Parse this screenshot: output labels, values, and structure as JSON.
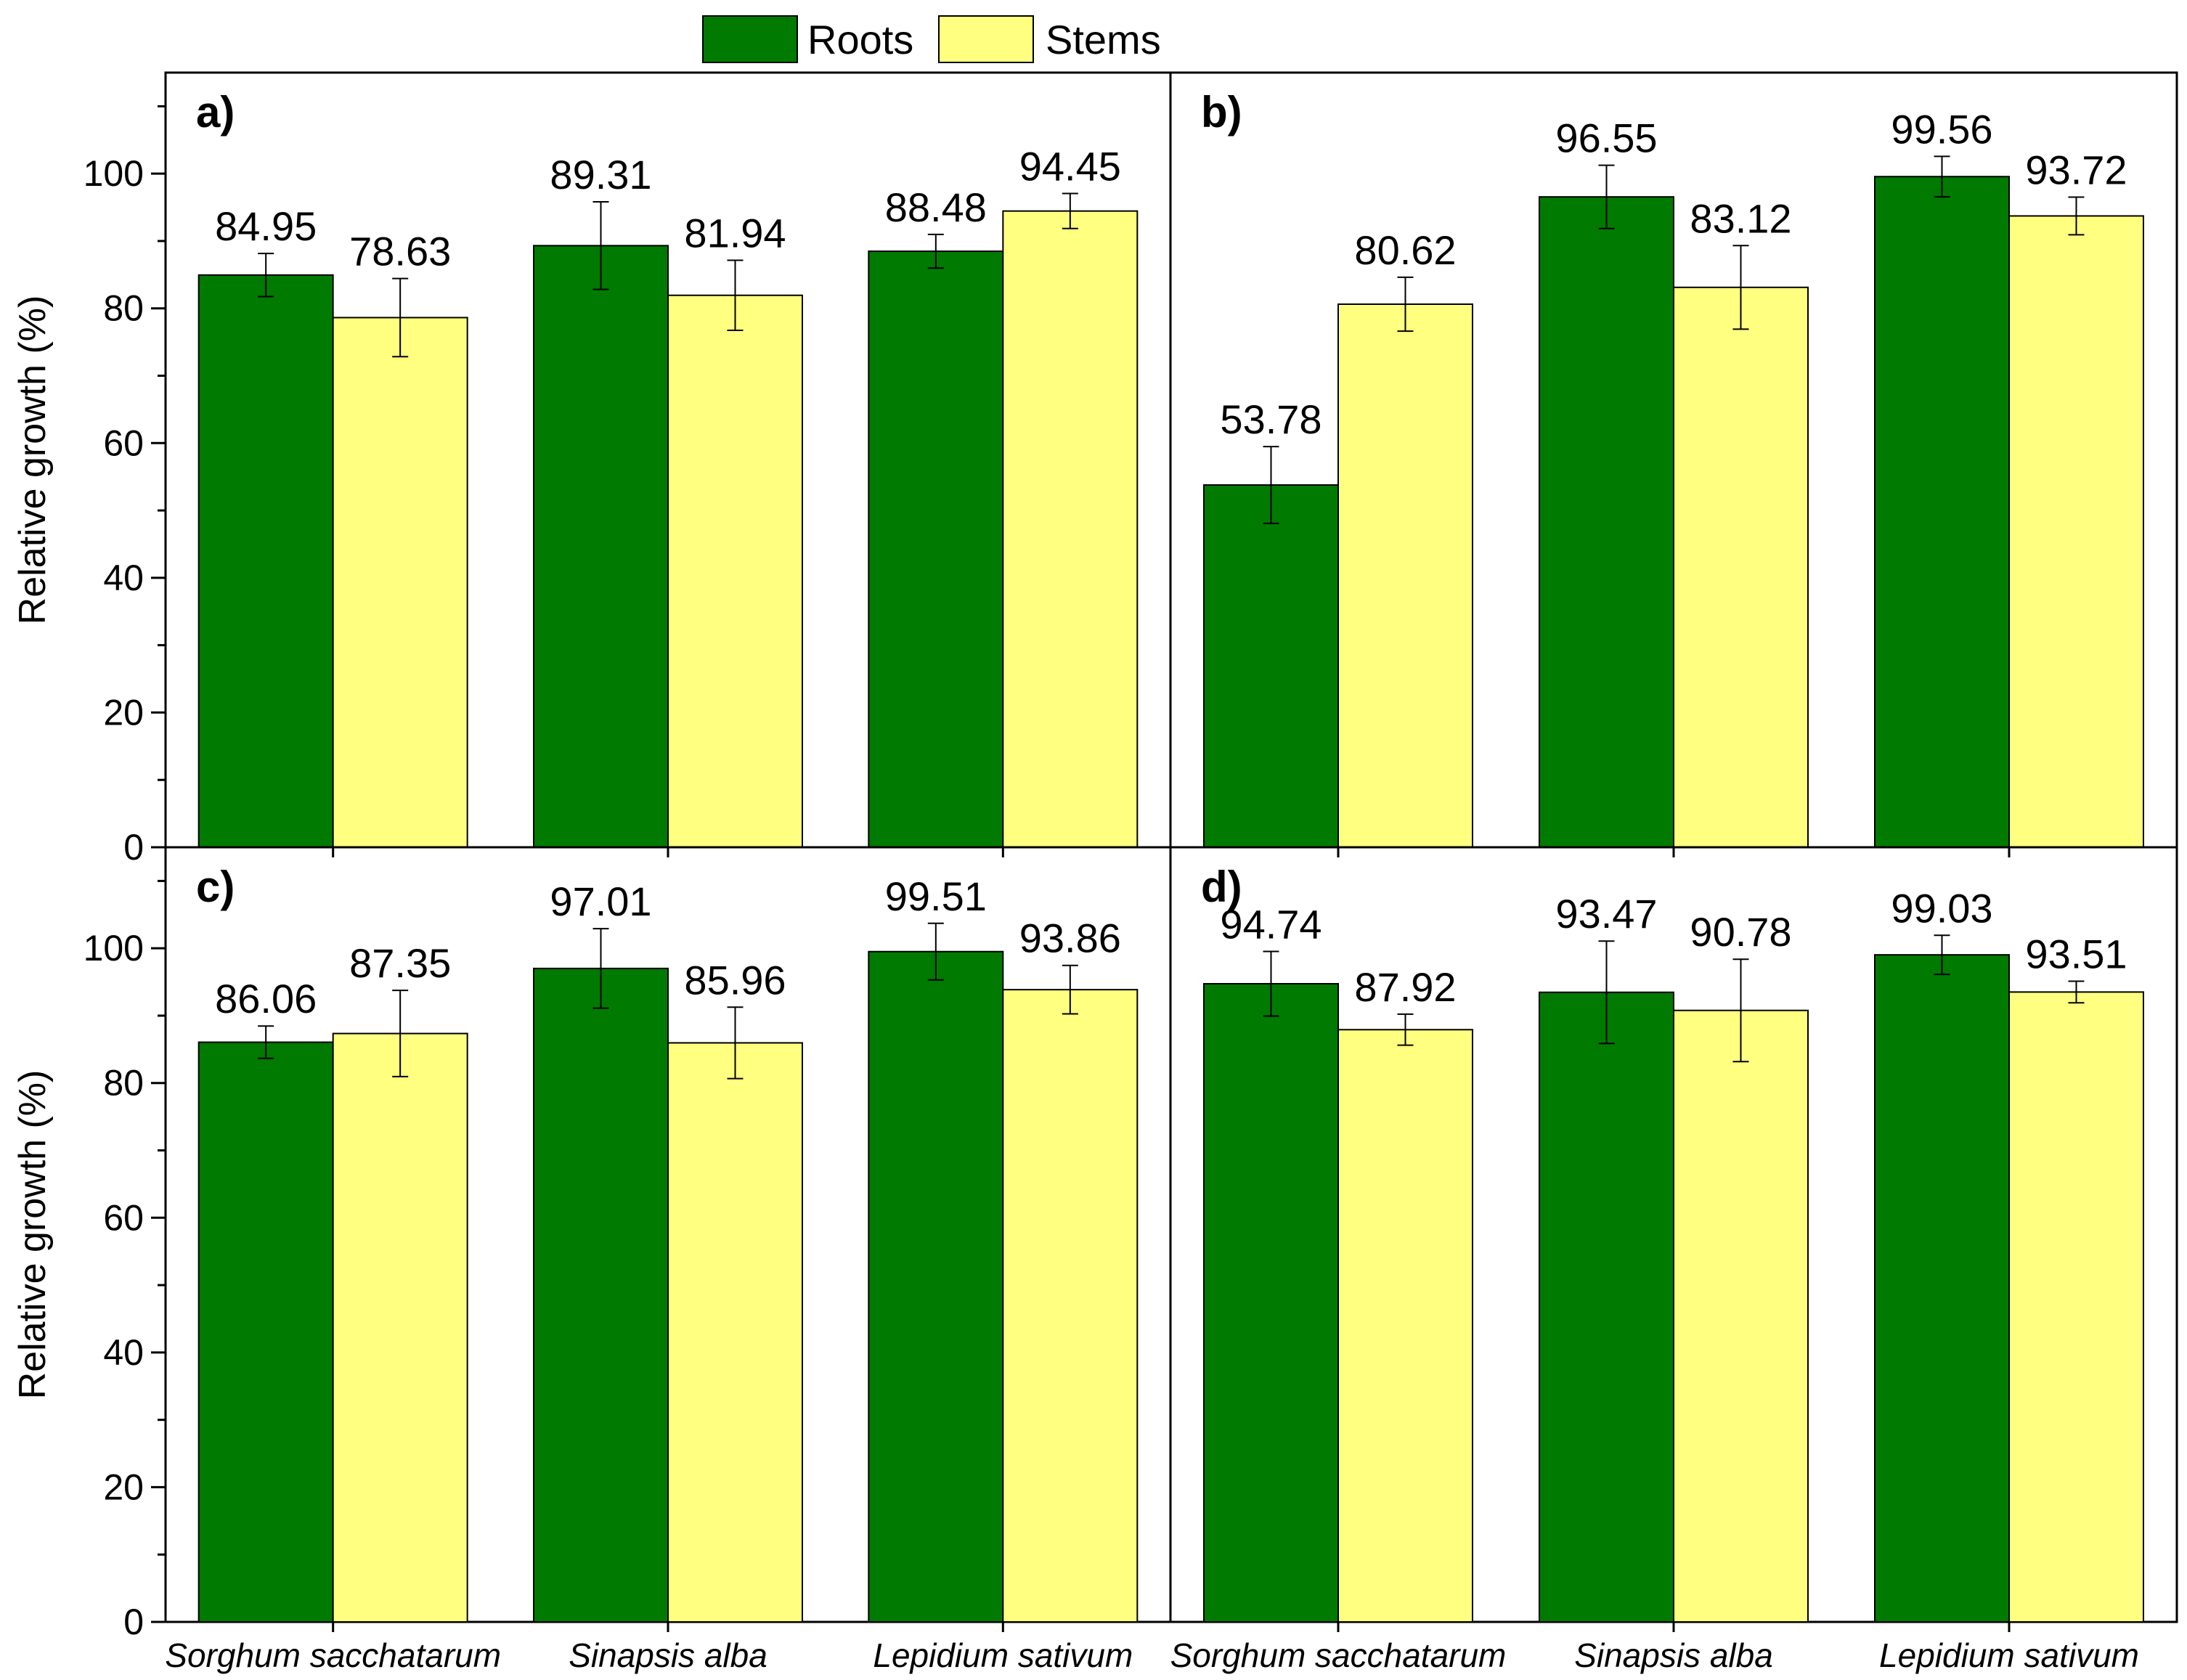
{
  "chart_data": {
    "type": "bar",
    "ylabel": "Relative growth (%)",
    "ylim": [
      0,
      115
    ],
    "yticks": [
      0,
      20,
      40,
      60,
      80,
      100
    ],
    "categories": [
      "Sorghum sacchatarum",
      "Sinapsis alba",
      "Lepidium sativum"
    ],
    "legend": {
      "position": "top-center",
      "entries": [
        {
          "name": "Roots",
          "color": "#007a00"
        },
        {
          "name": "Stems",
          "color": "#ffff80"
        }
      ]
    },
    "panels": [
      {
        "label": "a)",
        "series": [
          {
            "name": "Roots",
            "values": [
              84.95,
              89.31,
              88.48
            ],
            "errors": [
              3.2,
              6.5,
              2.5
            ],
            "labels": [
              "84.95",
              "89.31",
              "88.48"
            ]
          },
          {
            "name": "Stems",
            "values": [
              78.63,
              81.94,
              94.45
            ],
            "errors": [
              5.8,
              5.2,
              2.6
            ],
            "labels": [
              "78.63",
              "81.94",
              "94.45"
            ]
          }
        ]
      },
      {
        "label": "b)",
        "series": [
          {
            "name": "Roots",
            "values": [
              53.78,
              96.55,
              99.56
            ],
            "errors": [
              5.7,
              4.7,
              3.0
            ],
            "labels": [
              "53.78",
              "96.55",
              "99.56"
            ]
          },
          {
            "name": "Stems",
            "values": [
              80.62,
              83.12,
              93.72
            ],
            "errors": [
              4.0,
              6.2,
              2.8
            ],
            "labels": [
              "80.62",
              "83.12",
              "93.72"
            ]
          }
        ]
      },
      {
        "label": "c)",
        "series": [
          {
            "name": "Roots",
            "values": [
              86.06,
              97.01,
              99.51
            ],
            "errors": [
              2.4,
              5.9,
              4.2
            ],
            "labels": [
              "86.06",
              "97.01",
              "99.51"
            ]
          },
          {
            "name": "Stems",
            "values": [
              87.35,
              85.96,
              93.86
            ],
            "errors": [
              6.4,
              5.3,
              3.6
            ],
            "labels": [
              "87.35",
              "85.96",
              "93.86"
            ]
          }
        ]
      },
      {
        "label": "d)",
        "series": [
          {
            "name": "Roots",
            "values": [
              94.74,
              93.47,
              99.03
            ],
            "errors": [
              4.8,
              7.6,
              2.9
            ],
            "labels": [
              "94.74",
              "93.47",
              "99.03"
            ]
          },
          {
            "name": "Stems",
            "values": [
              87.92,
              90.78,
              93.51
            ],
            "errors": [
              2.3,
              7.6,
              1.6
            ],
            "labels": [
              "87.92",
              "90.78",
              "93.51"
            ]
          }
        ]
      }
    ]
  }
}
